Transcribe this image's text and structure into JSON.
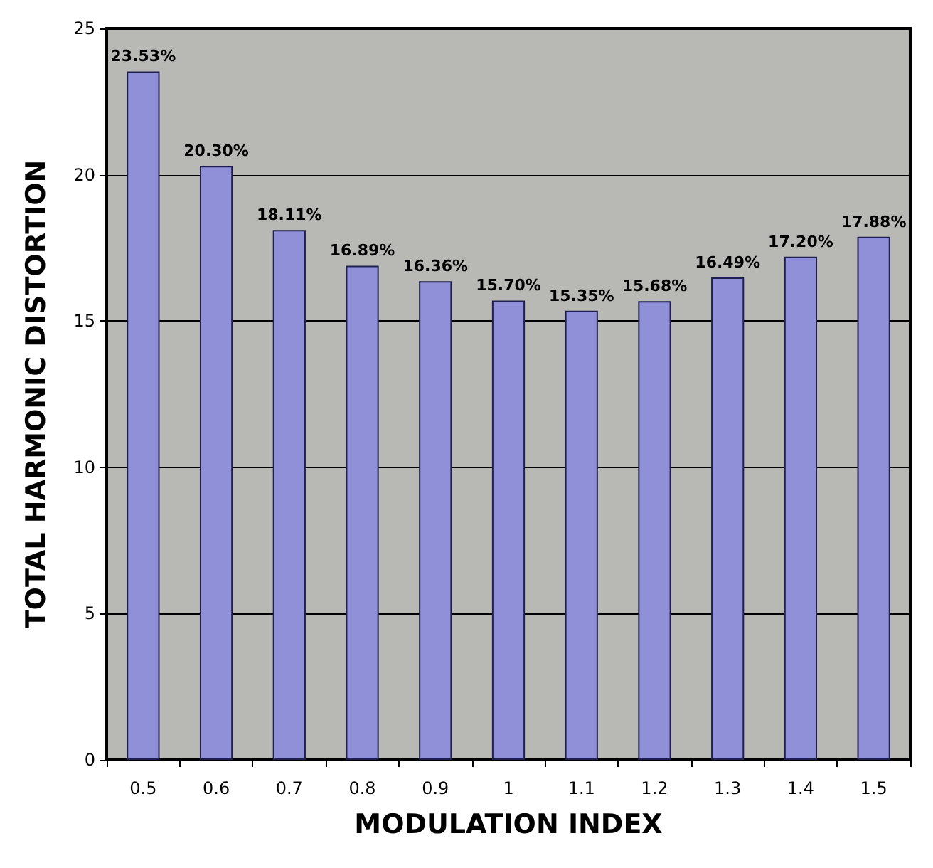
{
  "chart_data": {
    "type": "bar",
    "xlabel": "MODULATION INDEX",
    "ylabel": "TOTAL HARMONIC DISTORTION",
    "categories": [
      "0.5",
      "0.6",
      "0.7",
      "0.8",
      "0.9",
      "1",
      "1.1",
      "1.2",
      "1.3",
      "1.4",
      "1.5"
    ],
    "values": [
      23.53,
      20.3,
      18.11,
      16.89,
      16.36,
      15.7,
      15.35,
      15.68,
      16.49,
      17.2,
      17.88
    ],
    "value_labels": [
      "23.53%",
      "20.30%",
      "18.11%",
      "16.89%",
      "16.36%",
      "15.70%",
      "15.35%",
      "15.68%",
      "16.49%",
      "17.20%",
      "17.88%"
    ],
    "color": "#9090d8",
    "ylim": [
      0,
      25
    ],
    "yticks": [
      0,
      5,
      10,
      15,
      20,
      25
    ],
    "grid": "y"
  }
}
